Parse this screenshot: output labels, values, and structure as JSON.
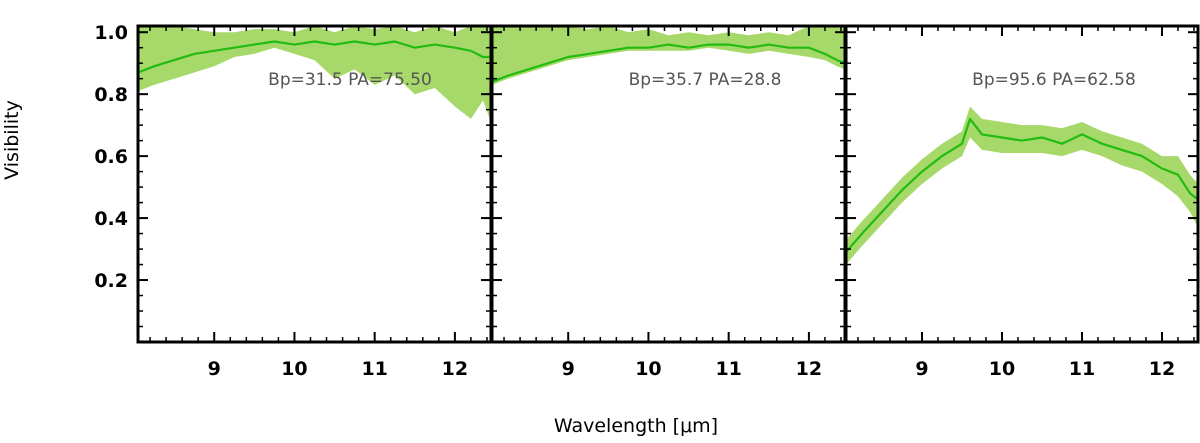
{
  "chart_data": {
    "type": "line",
    "xlabel": "Wavelength [μm]",
    "ylabel": "Visibility",
    "xlim": [
      8.05,
      12.45
    ],
    "ylim": [
      0.0,
      1.02
    ],
    "xticks": [
      9,
      10,
      11,
      12
    ],
    "xtick_labels": [
      "9",
      "10",
      "11",
      "12"
    ],
    "yticks": [
      0.2,
      0.4,
      0.6,
      0.8,
      1.0
    ],
    "ytick_labels": [
      "0.2",
      "0.4",
      "0.6",
      "0.8",
      "1.0"
    ],
    "grid": false,
    "colors": {
      "line": "#22bb10",
      "band": "#a6d96a",
      "text": "#555555",
      "axis": "#000000"
    },
    "panels": [
      {
        "annotation": "Bp=31.5  PA=75.50",
        "series": {
          "x": [
            8.05,
            8.25,
            8.5,
            8.75,
            9.0,
            9.25,
            9.5,
            9.75,
            10.0,
            10.25,
            10.5,
            10.75,
            11.0,
            11.25,
            11.5,
            11.75,
            12.0,
            12.2,
            12.35,
            12.45
          ],
          "y": [
            0.87,
            0.89,
            0.91,
            0.93,
            0.94,
            0.95,
            0.96,
            0.97,
            0.96,
            0.97,
            0.96,
            0.97,
            0.96,
            0.97,
            0.95,
            0.96,
            0.95,
            0.94,
            0.92,
            0.92
          ],
          "lower": [
            0.81,
            0.83,
            0.85,
            0.87,
            0.89,
            0.92,
            0.93,
            0.95,
            0.93,
            0.91,
            0.85,
            0.88,
            0.83,
            0.86,
            0.8,
            0.82,
            0.76,
            0.72,
            0.78,
            0.71
          ],
          "upper": [
            1.02,
            1.02,
            1.02,
            1.01,
            1.0,
            1.0,
            1.01,
            1.01,
            1.0,
            1.02,
            1.0,
            1.02,
            1.01,
            1.02,
            1.0,
            1.02,
            1.0,
            1.02,
            1.02,
            1.02
          ]
        }
      },
      {
        "annotation": "Bp=35.7  PA=28.8",
        "series": {
          "x": [
            8.05,
            8.25,
            8.5,
            8.75,
            9.0,
            9.25,
            9.5,
            9.75,
            10.0,
            10.25,
            10.5,
            10.75,
            11.0,
            11.25,
            11.5,
            11.75,
            12.0,
            12.2,
            12.35,
            12.45
          ],
          "y": [
            0.84,
            0.86,
            0.88,
            0.9,
            0.92,
            0.93,
            0.94,
            0.95,
            0.95,
            0.96,
            0.95,
            0.96,
            0.96,
            0.95,
            0.96,
            0.95,
            0.95,
            0.93,
            0.91,
            0.9
          ],
          "lower": [
            0.83,
            0.85,
            0.87,
            0.89,
            0.91,
            0.92,
            0.93,
            0.94,
            0.94,
            0.94,
            0.94,
            0.95,
            0.94,
            0.93,
            0.94,
            0.93,
            0.92,
            0.91,
            0.89,
            0.88
          ],
          "upper": [
            1.02,
            1.02,
            1.02,
            1.02,
            1.02,
            1.01,
            1.02,
            1.0,
            1.01,
            0.99,
            1.0,
            0.99,
            1.0,
            0.99,
            1.0,
            0.99,
            1.02,
            1.02,
            1.02,
            1.02
          ]
        }
      },
      {
        "annotation": "Bp=95.6  PA=62.58",
        "series": {
          "x": [
            8.05,
            8.25,
            8.5,
            8.75,
            9.0,
            9.25,
            9.5,
            9.6,
            9.75,
            10.0,
            10.25,
            10.5,
            10.75,
            11.0,
            11.25,
            11.5,
            11.75,
            12.0,
            12.2,
            12.35,
            12.45
          ],
          "y": [
            0.29,
            0.35,
            0.42,
            0.49,
            0.55,
            0.6,
            0.64,
            0.72,
            0.67,
            0.66,
            0.65,
            0.66,
            0.64,
            0.67,
            0.64,
            0.62,
            0.6,
            0.56,
            0.54,
            0.48,
            0.46
          ],
          "lower": [
            0.25,
            0.31,
            0.38,
            0.45,
            0.51,
            0.56,
            0.6,
            0.66,
            0.62,
            0.61,
            0.61,
            0.61,
            0.6,
            0.62,
            0.6,
            0.57,
            0.55,
            0.51,
            0.47,
            0.42,
            0.37
          ],
          "upper": [
            0.33,
            0.39,
            0.46,
            0.53,
            0.59,
            0.64,
            0.68,
            0.76,
            0.72,
            0.71,
            0.7,
            0.7,
            0.69,
            0.71,
            0.68,
            0.66,
            0.64,
            0.6,
            0.6,
            0.54,
            0.51
          ]
        }
      }
    ]
  }
}
